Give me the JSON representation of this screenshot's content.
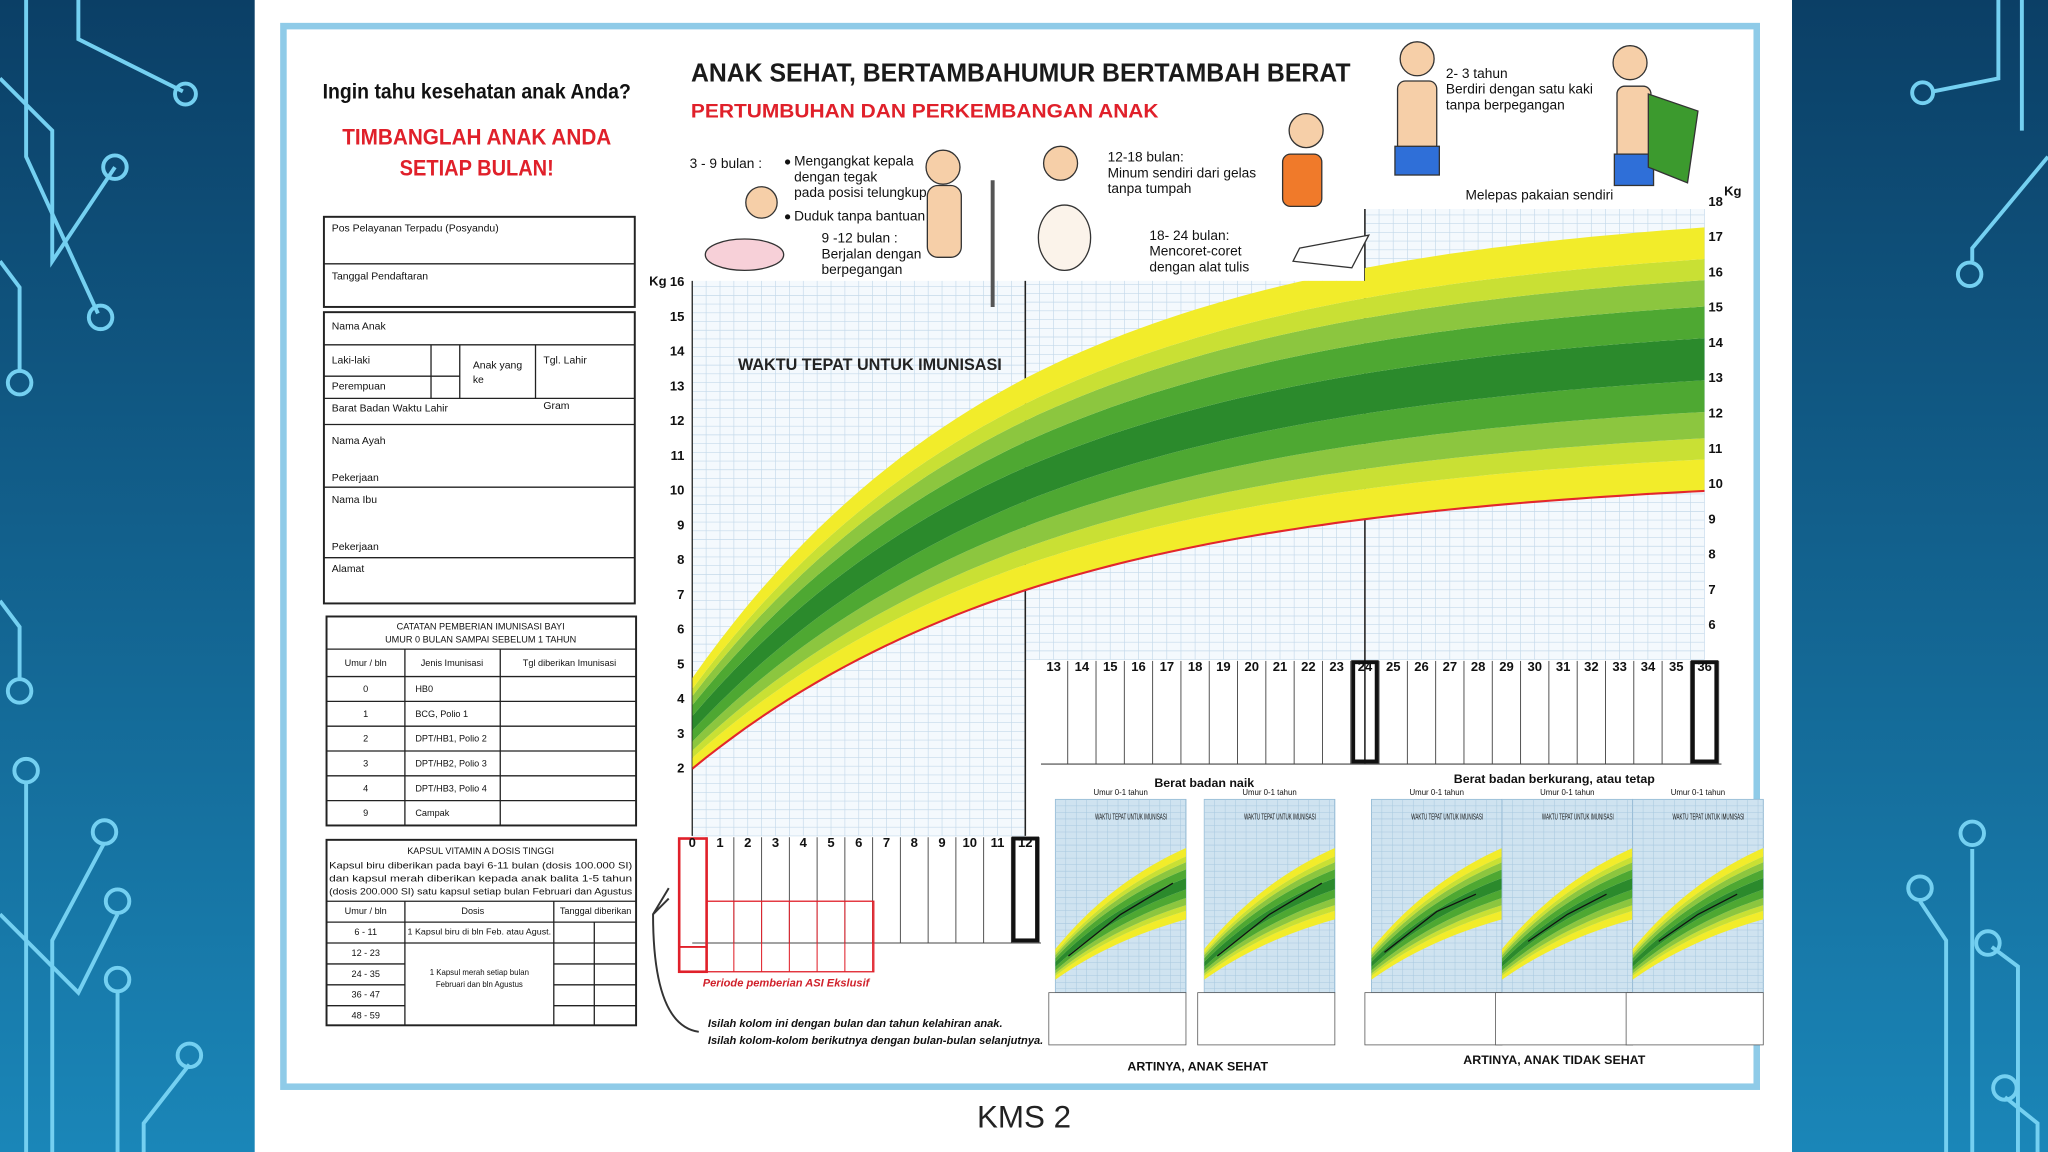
{
  "slide": {
    "caption": "KMS 2"
  },
  "card": {
    "question": "Ingin tahu kesehatan anak Anda?",
    "call_to_action": [
      "TIMBANGLAH ANAK ANDA",
      "SETIAP BULAN!"
    ]
  },
  "form": {
    "posyandu": "Pos Pelayanan Terpadu (Posyandu)",
    "registration_date": "Tanggal Pendaftaran",
    "child_name": "Nama Anak",
    "male": "Laki-laki",
    "female": "Perempuan",
    "child_order": [
      "Anak yang",
      "ke"
    ],
    "birth_date": "Tgl. Lahir",
    "birth_weight": "Barat Badan Waktu Lahir",
    "gram": "Gram",
    "father": "Nama Ayah",
    "father_job": "Pekerjaan",
    "mother": "Nama Ibu",
    "mother_job": "Pekerjaan",
    "address": "Alamat"
  },
  "immunization": {
    "title": [
      "CATATAN PEMBERIAN IMUNISASI BAYI",
      "UMUR 0 BULAN SAMPAI SEBELUM 1 TAHUN"
    ],
    "headers": [
      "Umur / bln",
      "Jenis Imunisasi",
      "Tgl diberikan Imunisasi"
    ],
    "rows": [
      [
        "0",
        "HB0"
      ],
      [
        "1",
        "BCG, Polio 1"
      ],
      [
        "2",
        "DPT/HB1, Polio 2"
      ],
      [
        "3",
        "DPT/HB2, Polio 3"
      ],
      [
        "4",
        "DPT/HB3, Polio 4"
      ],
      [
        "9",
        "Campak"
      ]
    ]
  },
  "vitamin_a": {
    "title": "KAPSUL VITAMIN A DOSIS TINGGI",
    "description": [
      "Kapsul biru diberikan pada bayi 6-11 bulan (dosis 100.000 SI)",
      "dan kapsul merah diberikan kepada anak balita 1-5 tahun",
      "(dosis 200.000 SI) satu kapsul setiap bulan Februari dan Agustus"
    ],
    "headers": [
      "Umur / bln",
      "Dosis",
      "Tanggal diberikan"
    ],
    "ages": [
      "6 - 11",
      "12 - 23",
      "24 - 35",
      "36 - 47",
      "48 - 59"
    ],
    "doses": [
      "1 Kapsul biru di bln Feb. atau Agust.",
      [
        "1 Kapsul merah setiap bulan",
        "Februari dan bln Agustus"
      ]
    ]
  },
  "growth_chart": {
    "title": "ANAK SEHAT, BERTAMBAHUMUR BERTAMBAH BERAT",
    "subtitle": "PERTUMBUHAN DAN PERKEMBANGAN ANAK",
    "milestones": [
      [
        "3 - 9 bulan :"
      ],
      [
        "Mengangkat kepala",
        "dengan tegak",
        "pada posisi telungkup"
      ],
      [
        "Duduk tanpa bantuan"
      ],
      [
        "9 -12 bulan :",
        "Berjalan dengan",
        "berpegangan"
      ],
      [
        "12-18 bulan:",
        "Minum sendiri dari gelas",
        "tanpa tumpah"
      ],
      [
        "18- 24 bulan:",
        "Mencoret-coret",
        "dengan alat tulis"
      ],
      [
        "2- 3 tahun",
        "Berdiri dengan satu kaki",
        "tanpa berpegangan"
      ],
      [
        "Melepas pakaian sendiri"
      ]
    ],
    "y_unit": "Kg",
    "left_yticks": [
      2,
      3,
      4,
      5,
      6,
      7,
      8,
      9,
      10,
      11,
      12,
      13,
      14,
      15,
      16
    ],
    "right_yticks": [
      6,
      7,
      8,
      9,
      10,
      11,
      12,
      13,
      14,
      15,
      16,
      17,
      18
    ],
    "months": [
      0,
      1,
      2,
      3,
      4,
      5,
      6,
      7,
      8,
      9,
      10,
      11,
      12,
      13,
      14,
      15,
      16,
      17,
      18,
      19,
      20,
      21,
      22,
      23,
      24,
      25,
      26,
      27,
      28,
      29,
      30,
      31,
      32,
      33,
      34,
      35,
      36
    ],
    "immunization_label": "WAKTU TEPAT UNTUK IMUNISASI",
    "asi_note": "Periode pemberian ASI Ekslusif",
    "fill_notes": [
      "Isilah kolom ini dengan bulan dan tahun kelahiran anak.",
      "Isilah kolom-kolom berikutnya dengan bulan-bulan selanjutnya."
    ]
  },
  "examples": {
    "gaining": "Berat badan naik",
    "losing": "Berat badan berkurang, atau tetap",
    "healthy": "ARTINYA, ANAK SEHAT",
    "unhealthy": "ARTINYA, ANAK TIDAK SEHAT",
    "panel_label": "Umur 0-1 tahun",
    "panel_note": "WAKTU TEPAT UNTUK IMUNISASI"
  }
}
